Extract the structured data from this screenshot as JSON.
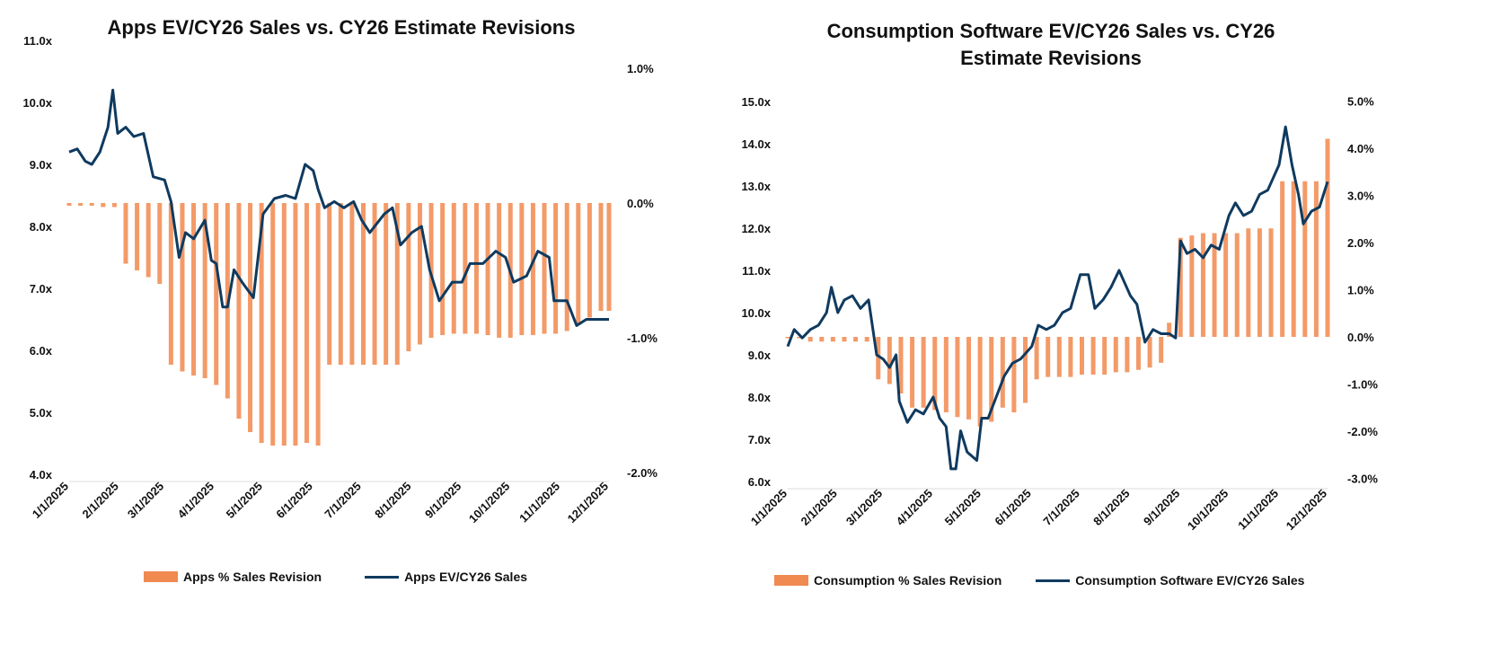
{
  "colors": {
    "bar": "#f39a68",
    "line": "#0f3a5f"
  },
  "chart_data": [
    {
      "type": "bar+line",
      "title": "Apps EV/CY26 Sales vs. CY26 Estimate Revisions",
      "x_unit": "days since 1/1/2025",
      "x_ticks": [
        {
          "day": 0,
          "label": "1/1/2025"
        },
        {
          "day": 31,
          "label": "2/1/2025"
        },
        {
          "day": 59,
          "label": "3/1/2025"
        },
        {
          "day": 90,
          "label": "4/1/2025"
        },
        {
          "day": 120,
          "label": "5/1/2025"
        },
        {
          "day": 151,
          "label": "6/1/2025"
        },
        {
          "day": 181,
          "label": "7/1/2025"
        },
        {
          "day": 212,
          "label": "8/1/2025"
        },
        {
          "day": 243,
          "label": "9/1/2025"
        },
        {
          "day": 273,
          "label": "10/1/2025"
        },
        {
          "day": 304,
          "label": "11/1/2025"
        },
        {
          "day": 334,
          "label": "12/1/2025"
        }
      ],
      "ylim_left": [
        4,
        11
      ],
      "y_left_ticks": [
        "4.0x",
        "5.0x",
        "6.0x",
        "7.0x",
        "8.0x",
        "9.0x",
        "10.0x",
        "11.0x"
      ],
      "ylim_right": [
        -2,
        1
      ],
      "y_right_ticks": [
        "-2.0%",
        "-1.0%",
        "0.0%",
        "1.0%"
      ],
      "legend": {
        "bar": "Apps % Sales Revision",
        "line": "Apps EV/CY26 Sales"
      },
      "bars": [
        [
          0,
          -0.02
        ],
        [
          7,
          -0.02
        ],
        [
          14,
          -0.02
        ],
        [
          21,
          -0.03
        ],
        [
          28,
          -0.03
        ],
        [
          35,
          -0.45
        ],
        [
          42,
          -0.5
        ],
        [
          49,
          -0.55
        ],
        [
          56,
          -0.6
        ],
        [
          63,
          -1.2
        ],
        [
          70,
          -1.25
        ],
        [
          77,
          -1.28
        ],
        [
          84,
          -1.3
        ],
        [
          91,
          -1.35
        ],
        [
          98,
          -1.45
        ],
        [
          105,
          -1.6
        ],
        [
          112,
          -1.7
        ],
        [
          119,
          -1.78
        ],
        [
          126,
          -1.8
        ],
        [
          133,
          -1.8
        ],
        [
          140,
          -1.8
        ],
        [
          147,
          -1.78
        ],
        [
          154,
          -1.8
        ],
        [
          161,
          -1.2
        ],
        [
          168,
          -1.2
        ],
        [
          175,
          -1.2
        ],
        [
          182,
          -1.2
        ],
        [
          189,
          -1.2
        ],
        [
          196,
          -1.2
        ],
        [
          203,
          -1.2
        ],
        [
          210,
          -1.1
        ],
        [
          217,
          -1.05
        ],
        [
          224,
          -1.0
        ],
        [
          231,
          -0.98
        ],
        [
          238,
          -0.97
        ],
        [
          245,
          -0.97
        ],
        [
          252,
          -0.97
        ],
        [
          259,
          -0.98
        ],
        [
          266,
          -1.0
        ],
        [
          273,
          -1.0
        ],
        [
          280,
          -0.98
        ],
        [
          287,
          -0.98
        ],
        [
          294,
          -0.97
        ],
        [
          301,
          -0.97
        ],
        [
          308,
          -0.95
        ],
        [
          315,
          -0.9
        ],
        [
          322,
          -0.85
        ],
        [
          329,
          -0.8
        ],
        [
          334,
          -0.8
        ]
      ],
      "line": [
        [
          0,
          9.2
        ],
        [
          5,
          9.25
        ],
        [
          10,
          9.05
        ],
        [
          14,
          9.0
        ],
        [
          19,
          9.2
        ],
        [
          24,
          9.6
        ],
        [
          27,
          10.2
        ],
        [
          30,
          9.5
        ],
        [
          35,
          9.6
        ],
        [
          40,
          9.45
        ],
        [
          46,
          9.5
        ],
        [
          52,
          8.8
        ],
        [
          59,
          8.75
        ],
        [
          63,
          8.4
        ],
        [
          68,
          7.5
        ],
        [
          72,
          7.9
        ],
        [
          77,
          7.8
        ],
        [
          84,
          8.1
        ],
        [
          88,
          7.45
        ],
        [
          91,
          7.4
        ],
        [
          95,
          6.7
        ],
        [
          98,
          6.7
        ],
        [
          102,
          7.3
        ],
        [
          107,
          7.1
        ],
        [
          114,
          6.85
        ],
        [
          120,
          8.2
        ],
        [
          127,
          8.45
        ],
        [
          134,
          8.5
        ],
        [
          140,
          8.45
        ],
        [
          146,
          9.0
        ],
        [
          151,
          8.9
        ],
        [
          154,
          8.6
        ],
        [
          158,
          8.3
        ],
        [
          164,
          8.4
        ],
        [
          170,
          8.3
        ],
        [
          176,
          8.4
        ],
        [
          181,
          8.1
        ],
        [
          186,
          7.9
        ],
        [
          195,
          8.2
        ],
        [
          200,
          8.3
        ],
        [
          205,
          7.7
        ],
        [
          212,
          7.9
        ],
        [
          218,
          8.0
        ],
        [
          223,
          7.3
        ],
        [
          229,
          6.8
        ],
        [
          237,
          7.1
        ],
        [
          243,
          7.1
        ],
        [
          248,
          7.4
        ],
        [
          256,
          7.4
        ],
        [
          264,
          7.6
        ],
        [
          270,
          7.5
        ],
        [
          275,
          7.1
        ],
        [
          283,
          7.2
        ],
        [
          290,
          7.6
        ],
        [
          297,
          7.5
        ],
        [
          300,
          6.8
        ],
        [
          308,
          6.8
        ],
        [
          314,
          6.4
        ],
        [
          320,
          6.5
        ],
        [
          334,
          6.5
        ]
      ]
    },
    {
      "type": "bar+line",
      "title": "Consumption Software EV/CY26 Sales vs. CY26 Estimate Revisions",
      "x_unit": "days since 1/1/2025",
      "x_ticks": [
        {
          "day": 0,
          "label": "1/1/2025"
        },
        {
          "day": 31,
          "label": "2/1/2025"
        },
        {
          "day": 59,
          "label": "3/1/2025"
        },
        {
          "day": 90,
          "label": "4/1/2025"
        },
        {
          "day": 120,
          "label": "5/1/2025"
        },
        {
          "day": 151,
          "label": "6/1/2025"
        },
        {
          "day": 181,
          "label": "7/1/2025"
        },
        {
          "day": 212,
          "label": "8/1/2025"
        },
        {
          "day": 243,
          "label": "9/1/2025"
        },
        {
          "day": 273,
          "label": "10/1/2025"
        },
        {
          "day": 304,
          "label": "11/1/2025"
        },
        {
          "day": 334,
          "label": "12/1/2025"
        }
      ],
      "ylim_left": [
        6,
        15
      ],
      "y_left_ticks": [
        "6.0x",
        "7.0x",
        "8.0x",
        "9.0x",
        "10.0x",
        "11.0x",
        "12.0x",
        "13.0x",
        "14.0x",
        "15.0x"
      ],
      "ylim_right": [
        -3,
        5
      ],
      "y_right_ticks": [
        "-3.0%",
        "-2.0%",
        "-1.0%",
        "0.0%",
        "1.0%",
        "2.0%",
        "3.0%",
        "4.0%",
        "5.0%"
      ],
      "legend": {
        "bar": "Consumption % Sales Revision",
        "line": "Consumption Software EV/CY26 Sales"
      },
      "bars": [
        [
          0,
          0
        ],
        [
          7,
          0
        ],
        [
          14,
          -0.1
        ],
        [
          21,
          -0.1
        ],
        [
          28,
          -0.1
        ],
        [
          35,
          -0.1
        ],
        [
          42,
          -0.1
        ],
        [
          49,
          -0.1
        ],
        [
          56,
          -0.9
        ],
        [
          63,
          -1.0
        ],
        [
          70,
          -1.2
        ],
        [
          77,
          -1.5
        ],
        [
          84,
          -1.5
        ],
        [
          91,
          -1.55
        ],
        [
          98,
          -1.6
        ],
        [
          105,
          -1.7
        ],
        [
          112,
          -1.75
        ],
        [
          119,
          -1.9
        ],
        [
          126,
          -1.8
        ],
        [
          133,
          -1.5
        ],
        [
          140,
          -1.6
        ],
        [
          147,
          -1.4
        ],
        [
          154,
          -0.9
        ],
        [
          161,
          -0.85
        ],
        [
          168,
          -0.85
        ],
        [
          175,
          -0.85
        ],
        [
          182,
          -0.8
        ],
        [
          189,
          -0.8
        ],
        [
          196,
          -0.8
        ],
        [
          203,
          -0.75
        ],
        [
          210,
          -0.75
        ],
        [
          217,
          -0.7
        ],
        [
          224,
          -0.65
        ],
        [
          231,
          -0.55
        ],
        [
          236,
          0.3
        ],
        [
          243,
          2.1
        ],
        [
          250,
          2.15
        ],
        [
          257,
          2.2
        ],
        [
          264,
          2.2
        ],
        [
          271,
          2.2
        ],
        [
          278,
          2.2
        ],
        [
          285,
          2.3
        ],
        [
          292,
          2.3
        ],
        [
          299,
          2.3
        ],
        [
          306,
          3.3
        ],
        [
          313,
          3.3
        ],
        [
          320,
          3.3
        ],
        [
          327,
          3.3
        ],
        [
          334,
          4.2
        ]
      ],
      "line": [
        [
          0,
          9.2
        ],
        [
          4,
          9.6
        ],
        [
          9,
          9.4
        ],
        [
          14,
          9.6
        ],
        [
          19,
          9.7
        ],
        [
          24,
          10.0
        ],
        [
          27,
          10.6
        ],
        [
          31,
          10.0
        ],
        [
          35,
          10.3
        ],
        [
          40,
          10.4
        ],
        [
          45,
          10.1
        ],
        [
          50,
          10.3
        ],
        [
          55,
          9.0
        ],
        [
          59,
          8.9
        ],
        [
          63,
          8.7
        ],
        [
          67,
          9.0
        ],
        [
          69,
          7.9
        ],
        [
          74,
          7.4
        ],
        [
          79,
          7.7
        ],
        [
          84,
          7.6
        ],
        [
          90,
          8.0
        ],
        [
          94,
          7.5
        ],
        [
          98,
          7.3
        ],
        [
          101,
          6.3
        ],
        [
          104,
          6.3
        ],
        [
          107,
          7.2
        ],
        [
          111,
          6.7
        ],
        [
          117,
          6.5
        ],
        [
          120,
          7.5
        ],
        [
          124,
          7.5
        ],
        [
          129,
          8.0
        ],
        [
          134,
          8.5
        ],
        [
          139,
          8.8
        ],
        [
          144,
          8.9
        ],
        [
          151,
          9.2
        ],
        [
          155,
          9.7
        ],
        [
          160,
          9.6
        ],
        [
          165,
          9.7
        ],
        [
          170,
          10.0
        ],
        [
          175,
          10.1
        ],
        [
          181,
          10.9
        ],
        [
          186,
          10.9
        ],
        [
          190,
          10.1
        ],
        [
          195,
          10.3
        ],
        [
          200,
          10.6
        ],
        [
          205,
          11.0
        ],
        [
          212,
          10.4
        ],
        [
          216,
          10.2
        ],
        [
          221,
          9.3
        ],
        [
          226,
          9.6
        ],
        [
          231,
          9.5
        ],
        [
          236,
          9.5
        ],
        [
          240,
          9.4
        ],
        [
          243,
          11.7
        ],
        [
          247,
          11.4
        ],
        [
          252,
          11.5
        ],
        [
          257,
          11.3
        ],
        [
          262,
          11.6
        ],
        [
          267,
          11.5
        ],
        [
          273,
          12.3
        ],
        [
          277,
          12.6
        ],
        [
          282,
          12.3
        ],
        [
          287,
          12.4
        ],
        [
          292,
          12.8
        ],
        [
          297,
          12.9
        ],
        [
          304,
          13.5
        ],
        [
          308,
          14.4
        ],
        [
          312,
          13.5
        ],
        [
          316,
          12.8
        ],
        [
          319,
          12.1
        ],
        [
          324,
          12.4
        ],
        [
          329,
          12.5
        ],
        [
          334,
          13.1
        ]
      ]
    }
  ]
}
